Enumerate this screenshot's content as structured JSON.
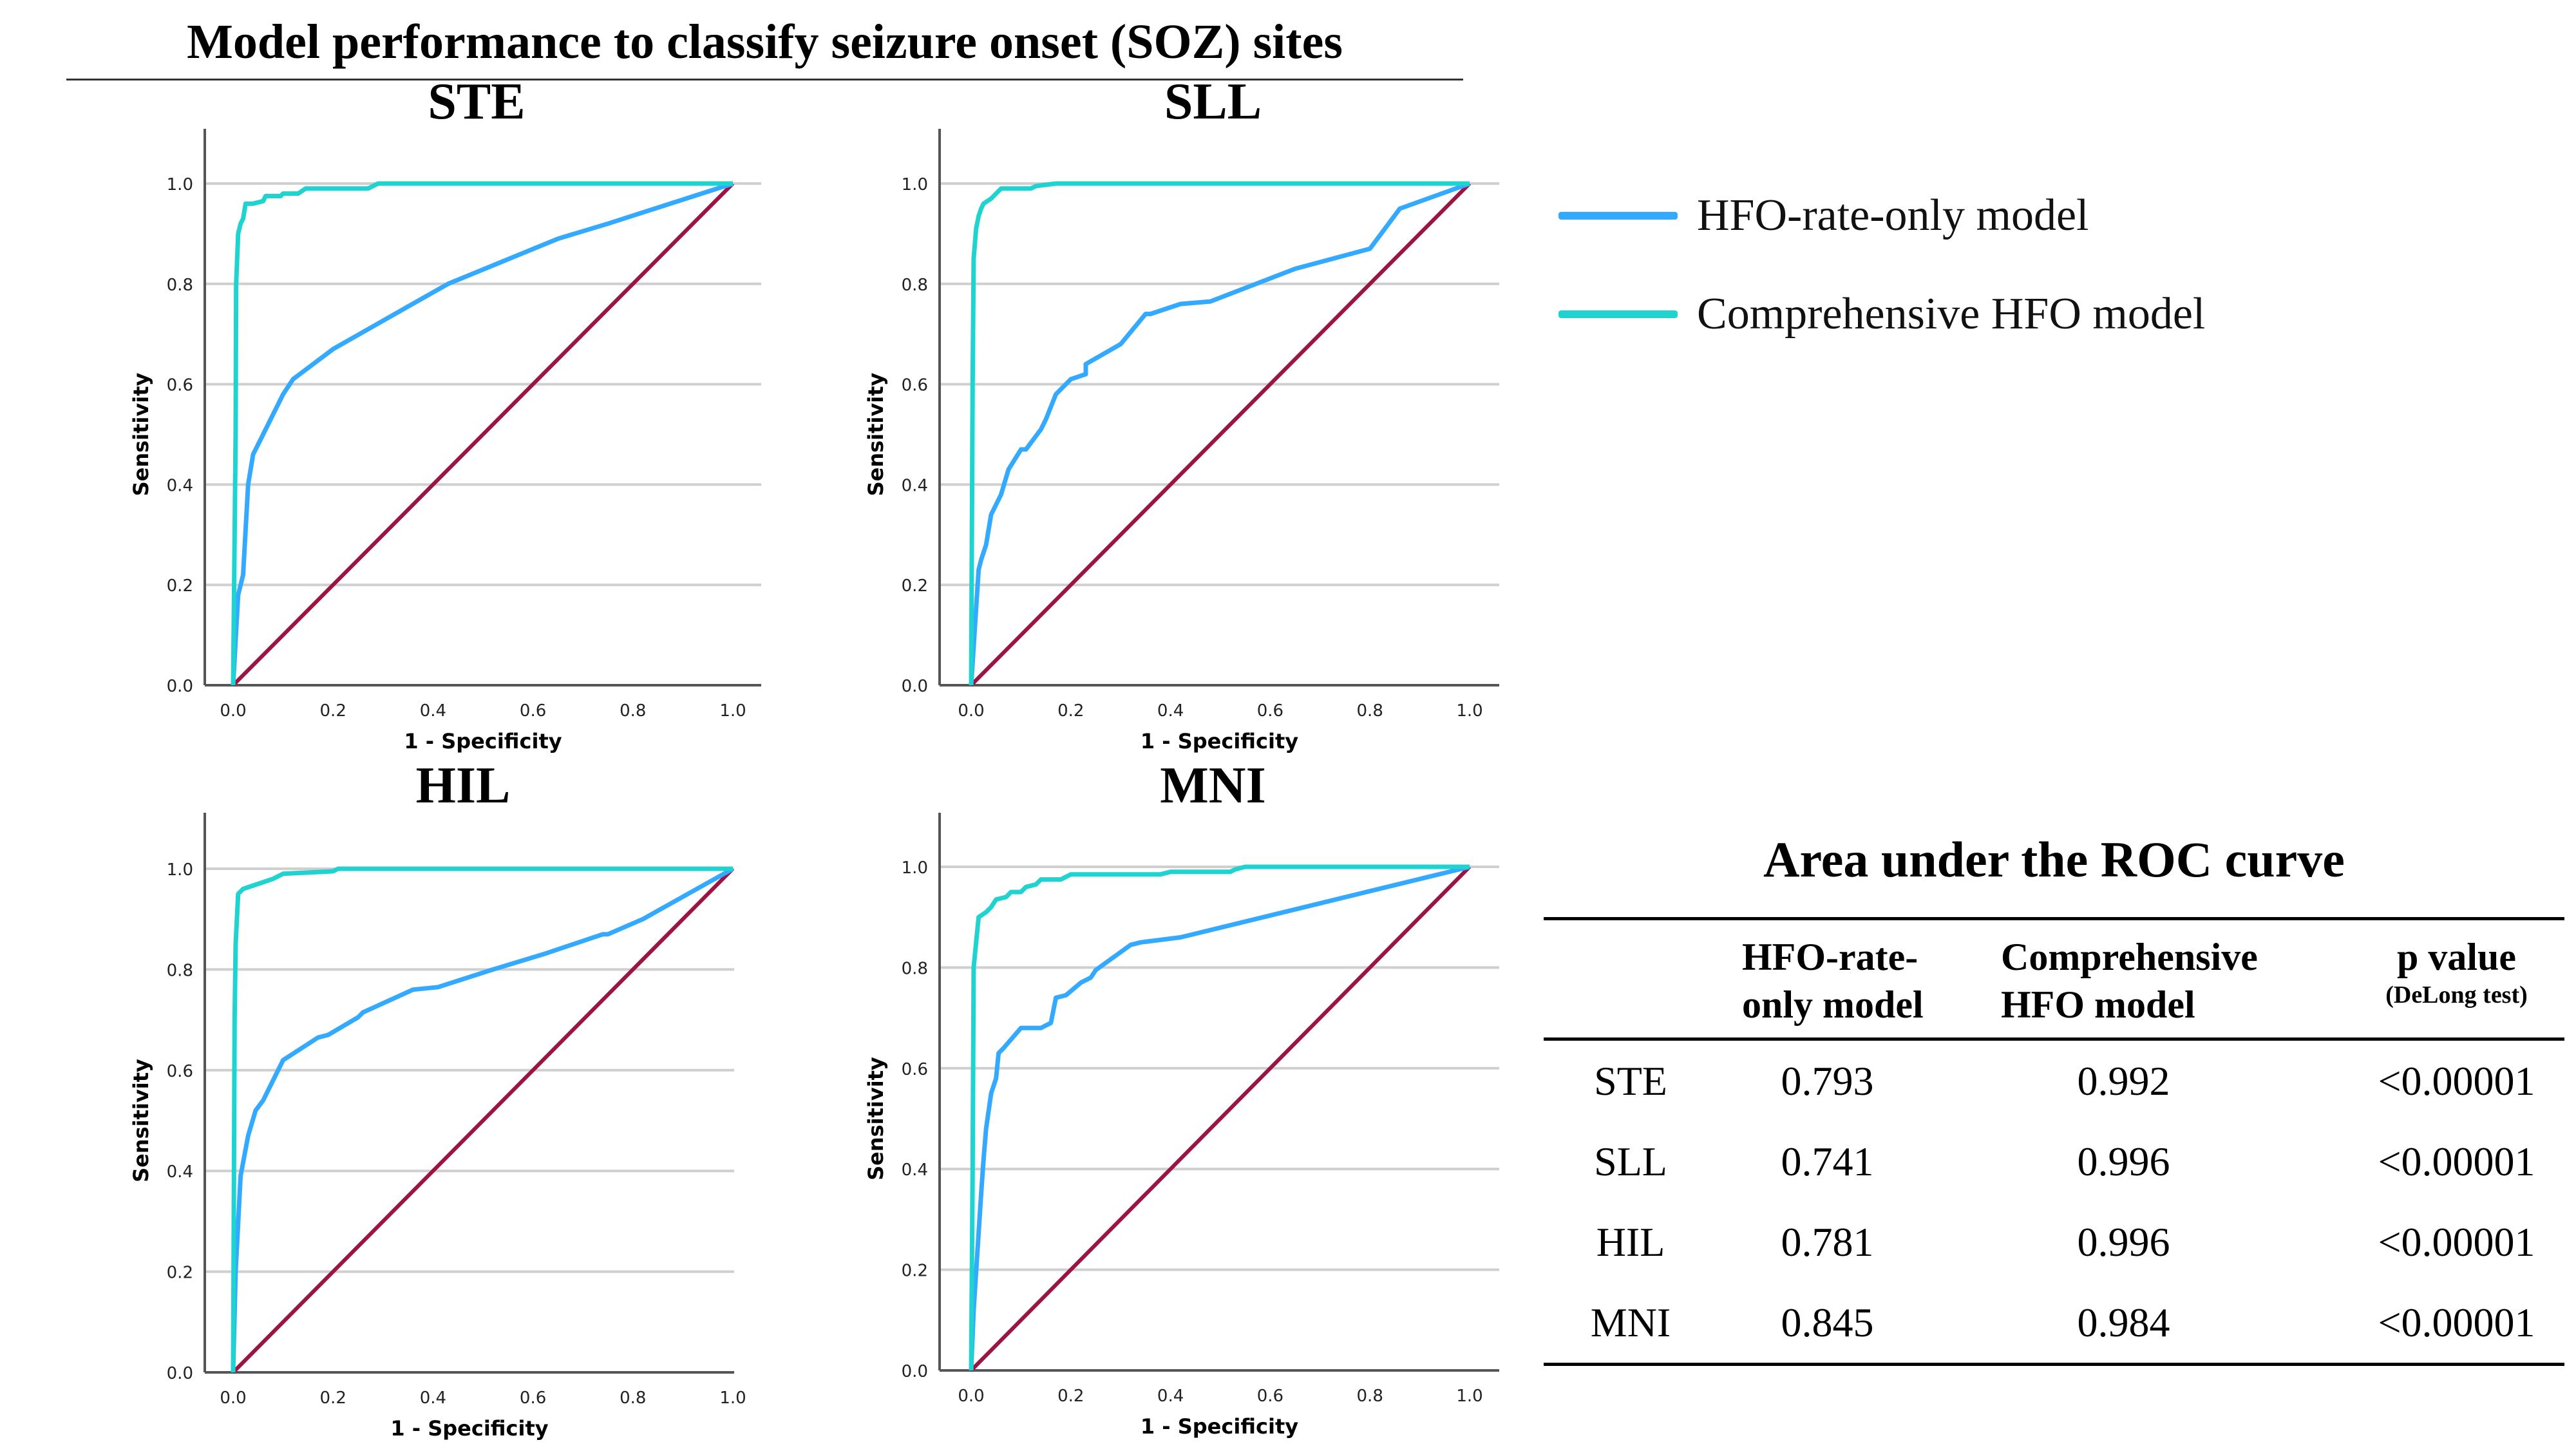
{
  "title": "Model performance to classify seizure onset (SOZ) sites",
  "legend": [
    {
      "label": "HFO-rate-only model",
      "color": "#33aaff"
    },
    {
      "label": "Comprehensive HFO model",
      "color": "#1fd3d0"
    }
  ],
  "reference_color": "#9b1443",
  "chart_data": [
    {
      "type": "line",
      "title": "STE",
      "xlabel": "1 - Specificity",
      "ylabel": "Sensitivity",
      "xlim": [
        0,
        1
      ],
      "ylim": [
        0,
        1
      ],
      "grid": "horizontal",
      "xticks": [
        "0.0",
        "0.2",
        "0.4",
        "0.6",
        "0.8",
        "1.0"
      ],
      "yticks": [
        "0.0",
        "0.2",
        "0.4",
        "0.6",
        "0.8",
        "1.0"
      ],
      "series": [
        {
          "name": "HFO-rate-only model",
          "x": [
            0,
            0.01,
            0.02,
            0.025,
            0.03,
            0.04,
            0.06,
            0.1,
            0.12,
            0.2,
            0.35,
            0.43,
            0.65,
            0.75,
            1
          ],
          "y": [
            0,
            0.18,
            0.22,
            0.31,
            0.4,
            0.46,
            0.5,
            0.58,
            0.61,
            0.67,
            0.755,
            0.8,
            0.89,
            0.92,
            1
          ]
        },
        {
          "name": "Comprehensive HFO model",
          "x": [
            0,
            0.005,
            0.006,
            0.01,
            0.015,
            0.02,
            0.025,
            0.04,
            0.06,
            0.065,
            0.095,
            0.1,
            0.13,
            0.145,
            0.27,
            0.29,
            1
          ],
          "y": [
            0,
            0.5,
            0.8,
            0.9,
            0.92,
            0.93,
            0.96,
            0.96,
            0.965,
            0.975,
            0.975,
            0.98,
            0.98,
            0.99,
            0.99,
            1,
            1
          ]
        }
      ]
    },
    {
      "type": "line",
      "title": "SLL",
      "xlabel": "1 - Specificity",
      "ylabel": "Sensitivity",
      "xlim": [
        0,
        1
      ],
      "ylim": [
        0,
        1
      ],
      "grid": "horizontal",
      "xticks": [
        "0.0",
        "0.2",
        "0.4",
        "0.6",
        "0.8",
        "1.0"
      ],
      "yticks": [
        "0.0",
        "0.2",
        "0.4",
        "0.6",
        "0.8",
        "1.0"
      ],
      "series": [
        {
          "name": "HFO-rate-only model",
          "x": [
            0,
            0.015,
            0.02,
            0.03,
            0.04,
            0.06,
            0.075,
            0.1,
            0.11,
            0.14,
            0.15,
            0.17,
            0.2,
            0.23,
            0.23,
            0.3,
            0.35,
            0.36,
            0.42,
            0.48,
            0.65,
            0.8,
            0.86,
            1
          ],
          "y": [
            0,
            0.23,
            0.25,
            0.28,
            0.34,
            0.38,
            0.43,
            0.47,
            0.47,
            0.51,
            0.53,
            0.58,
            0.61,
            0.62,
            0.64,
            0.68,
            0.74,
            0.74,
            0.76,
            0.765,
            0.83,
            0.87,
            0.95,
            1
          ]
        },
        {
          "name": "Comprehensive HFO model",
          "x": [
            0,
            0.003,
            0.005,
            0.01,
            0.015,
            0.02,
            0.025,
            0.04,
            0.05,
            0.06,
            0.12,
            0.13,
            0.17,
            1
          ],
          "y": [
            0,
            0.6,
            0.85,
            0.91,
            0.935,
            0.95,
            0.96,
            0.97,
            0.98,
            0.99,
            0.99,
            0.995,
            1,
            1
          ]
        }
      ]
    },
    {
      "type": "line",
      "title": "HIL",
      "xlabel": "1 - Specificity",
      "ylabel": "Sensitivity",
      "xlim": [
        0,
        1
      ],
      "ylim": [
        0,
        1
      ],
      "grid": "horizontal",
      "xticks": [
        "0.0",
        "0.2",
        "0.4",
        "0.6",
        "0.8",
        "1.0"
      ],
      "yticks": [
        "0.0",
        "0.2",
        "0.4",
        "0.6",
        "0.8",
        "1.0"
      ],
      "series": [
        {
          "name": "HFO-rate-only model",
          "x": [
            0,
            0.005,
            0.015,
            0.03,
            0.045,
            0.06,
            0.1,
            0.17,
            0.19,
            0.25,
            0.26,
            0.36,
            0.41,
            0.52,
            0.62,
            0.74,
            0.75,
            0.82,
            1
          ],
          "y": [
            0,
            0.2,
            0.39,
            0.47,
            0.52,
            0.54,
            0.62,
            0.665,
            0.67,
            0.705,
            0.715,
            0.76,
            0.765,
            0.8,
            0.83,
            0.87,
            0.87,
            0.9,
            1
          ]
        },
        {
          "name": "Comprehensive HFO model",
          "x": [
            0,
            0.003,
            0.005,
            0.01,
            0.02,
            0.05,
            0.08,
            0.1,
            0.2,
            0.21,
            1
          ],
          "y": [
            0,
            0.7,
            0.85,
            0.95,
            0.96,
            0.97,
            0.98,
            0.99,
            0.995,
            1,
            1
          ]
        }
      ]
    },
    {
      "type": "line",
      "title": "MNI",
      "xlabel": "1 - Specificity",
      "ylabel": "Sensitivity",
      "xlim": [
        0,
        1
      ],
      "ylim": [
        0,
        1
      ],
      "grid": "horizontal",
      "xticks": [
        "0.0",
        "0.2",
        "0.4",
        "0.6",
        "0.8",
        "1.0"
      ],
      "yticks": [
        "0.0",
        "0.2",
        "0.4",
        "0.6",
        "0.8",
        "1.0"
      ],
      "series": [
        {
          "name": "HFO-rate-only model",
          "x": [
            0,
            0.005,
            0.02,
            0.025,
            0.03,
            0.04,
            0.05,
            0.055,
            0.065,
            0.1,
            0.14,
            0.16,
            0.17,
            0.19,
            0.22,
            0.24,
            0.25,
            0.32,
            0.34,
            0.42,
            1
          ],
          "y": [
            0,
            0.12,
            0.35,
            0.42,
            0.48,
            0.55,
            0.58,
            0.63,
            0.64,
            0.68,
            0.68,
            0.69,
            0.74,
            0.745,
            0.77,
            0.78,
            0.795,
            0.845,
            0.85,
            0.86,
            1
          ]
        },
        {
          "name": "Comprehensive HFO model",
          "x": [
            0,
            0.003,
            0.005,
            0.01,
            0.015,
            0.03,
            0.04,
            0.05,
            0.07,
            0.08,
            0.1,
            0.11,
            0.13,
            0.14,
            0.18,
            0.2,
            0.38,
            0.4,
            0.52,
            0.53,
            0.55,
            1
          ],
          "y": [
            0,
            0.4,
            0.8,
            0.85,
            0.9,
            0.91,
            0.92,
            0.935,
            0.94,
            0.95,
            0.95,
            0.96,
            0.965,
            0.975,
            0.975,
            0.985,
            0.985,
            0.99,
            0.99,
            0.995,
            1,
            1
          ]
        }
      ]
    }
  ],
  "auc_table": {
    "title": "Area under the ROC curve",
    "headers": {
      "col1_line1": "HFO-rate-",
      "col1_line2": "only model",
      "col2_line1": "Comprehensive",
      "col2_line2": "HFO model",
      "col3_line1": "p value",
      "col3_sub": "(DeLong test)"
    },
    "rows": [
      {
        "site": "STE",
        "rate_only": "0.793",
        "comprehensive": "0.992",
        "p": "<0.00001"
      },
      {
        "site": "SLL",
        "rate_only": "0.741",
        "comprehensive": "0.996",
        "p": "<0.00001"
      },
      {
        "site": "HIL",
        "rate_only": "0.781",
        "comprehensive": "0.996",
        "p": "<0.00001"
      },
      {
        "site": "MNI",
        "rate_only": "0.845",
        "comprehensive": "0.984",
        "p": "<0.00001"
      }
    ]
  }
}
